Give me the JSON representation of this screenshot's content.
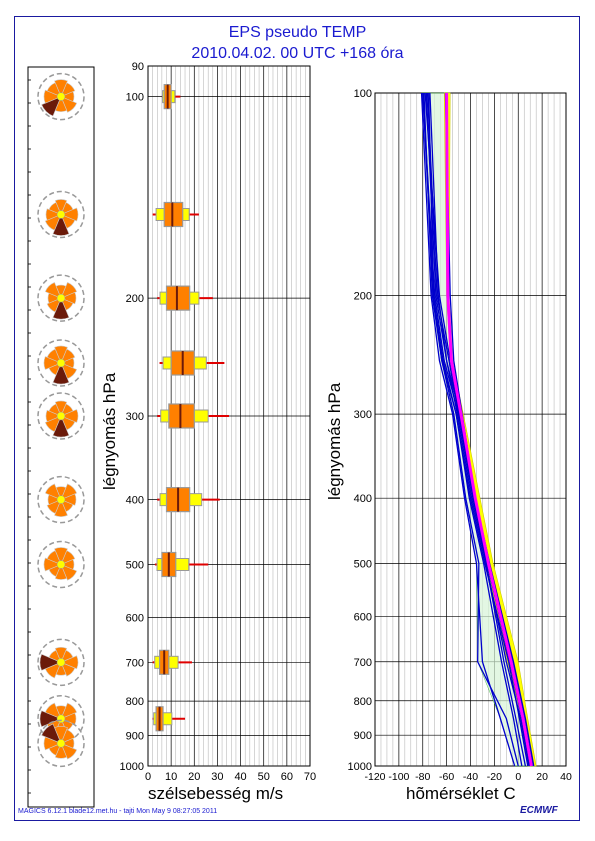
{
  "header": {
    "title": "EPS pseudo TEMP",
    "subtitle": "2010.04.02. 00 UTC +168 óra"
  },
  "footer": {
    "credit": "MAGICS 6.12.1 blade12.met.hu - tajti Mon May  9 08:27:05 2011",
    "logo": "ECMWF"
  },
  "colors": {
    "frame": "#1a1aa0",
    "title": "#1a1ad0",
    "box_orange": "#ff8000",
    "box_yellow": "#ffff00",
    "median_red": "#e00000",
    "rose_dark": "#6b1a0a",
    "temp_blue": "#0000cc",
    "temp_magenta": "#ff00ff",
    "temp_green": "#00a000"
  },
  "chart_data": [
    {
      "type": "wind-rose-column",
      "levels_hpa": [
        100,
        150,
        200,
        250,
        300,
        400,
        500,
        700,
        850,
        925
      ],
      "sectors": 8,
      "dominant_dark_sector": [
        "SW",
        "S",
        "S",
        "S",
        "S",
        "none",
        "none",
        "W",
        "W",
        "NW"
      ]
    },
    {
      "type": "box",
      "title": "",
      "xlabel": "szélsebesség m/s",
      "ylabel": "légnyomás hPa",
      "xlim": [
        0,
        70
      ],
      "ylim": [
        1000,
        90
      ],
      "y_scale": "log",
      "x_ticks": [
        "0",
        "10",
        "20",
        "30",
        "40",
        "50",
        "60",
        "70"
      ],
      "y_ticks": [
        "90",
        "100",
        "200",
        "300",
        "400",
        "500",
        "600",
        "700",
        "800",
        "900",
        "1000"
      ],
      "boxes": [
        {
          "p": 100,
          "min": 6,
          "q1": 7,
          "median": 8.5,
          "q3": 10,
          "max": 14
        },
        {
          "p": 150,
          "min": 2,
          "q1": 7,
          "median": 10.5,
          "q3": 15,
          "max": 22
        },
        {
          "p": 200,
          "min": 4,
          "q1": 8,
          "median": 12.5,
          "q3": 18,
          "max": 28
        },
        {
          "p": 250,
          "min": 5,
          "q1": 10,
          "median": 15,
          "q3": 20,
          "max": 33
        },
        {
          "p": 300,
          "min": 4,
          "q1": 9,
          "median": 14,
          "q3": 20,
          "max": 35
        },
        {
          "p": 400,
          "min": 4,
          "q1": 8,
          "median": 13,
          "q3": 18,
          "max": 31
        },
        {
          "p": 500,
          "min": 3,
          "q1": 6,
          "median": 9,
          "q3": 12,
          "max": 26
        },
        {
          "p": 700,
          "min": 2,
          "q1": 5,
          "median": 7,
          "q3": 9,
          "max": 19
        },
        {
          "p": 850,
          "min": 2,
          "q1": 3.5,
          "median": 5,
          "q3": 6.5,
          "max": 16
        }
      ]
    },
    {
      "type": "line",
      "title": "",
      "xlabel": "hõmérséklet C",
      "ylabel": "légnyomás hPa",
      "xlim": [
        -120,
        40
      ],
      "ylim": [
        1000,
        100
      ],
      "y_scale": "log",
      "x_ticks": [
        "-120",
        "-100",
        "-80",
        "-60",
        "-40",
        "-20",
        "0",
        "20",
        "40"
      ],
      "y_ticks": [
        "100",
        "200",
        "300",
        "400",
        "500",
        "600",
        "700",
        "800",
        "900",
        "1000"
      ],
      "pressure_levels": [
        100,
        200,
        250,
        300,
        400,
        500,
        700,
        850,
        1000
      ],
      "series": [
        {
          "kind": "yellow-upper",
          "values": [
            -57,
            -58,
            -55,
            -46,
            -32,
            -21,
            0,
            8,
            15
          ]
        },
        {
          "kind": "yellow-lower",
          "values": [
            -62,
            -60,
            -57,
            -50,
            -38,
            -27,
            -9,
            3,
            8
          ]
        },
        {
          "kind": "magenta",
          "values": [
            -60,
            -59,
            -56,
            -48,
            -36,
            -25,
            -6,
            4,
            11
          ]
        },
        {
          "kind": "blue-1",
          "values": [
            -80,
            -70,
            -62,
            -50,
            -38,
            -26,
            -7,
            3,
            10
          ]
        },
        {
          "kind": "blue-2",
          "values": [
            -78,
            -66,
            -57,
            -49,
            -36,
            -25,
            -5,
            5,
            12
          ]
        },
        {
          "kind": "blue-3",
          "values": [
            -75,
            -71,
            -64,
            -52,
            -40,
            -28,
            -8,
            1,
            8
          ]
        },
        {
          "kind": "blue-4",
          "values": [
            -77,
            -69,
            -60,
            -51,
            -39,
            -27,
            -10,
            2,
            9
          ]
        },
        {
          "kind": "blue-5",
          "values": [
            -79,
            -72,
            -64,
            -54,
            -44,
            -33,
            -34,
            -10,
            0
          ]
        },
        {
          "kind": "blue-6",
          "values": [
            -81,
            -73,
            -66,
            -55,
            -45,
            -35,
            -30,
            -15,
            -3
          ]
        },
        {
          "kind": "blue-7",
          "values": [
            -61,
            -57,
            -54,
            -47,
            -36,
            -24,
            -4,
            6,
            13
          ]
        },
        {
          "kind": "blue-8",
          "values": [
            -76,
            -68,
            -58,
            -50,
            -37,
            -26,
            -6,
            4,
            10
          ]
        },
        {
          "kind": "blue-9",
          "values": [
            -74,
            -67,
            -60,
            -49,
            -37,
            -27,
            -12,
            -2,
            6
          ]
        },
        {
          "kind": "blue-10",
          "values": [
            -80,
            -71,
            -63,
            -52,
            -41,
            -29,
            -14,
            -4,
            3
          ]
        }
      ]
    }
  ]
}
